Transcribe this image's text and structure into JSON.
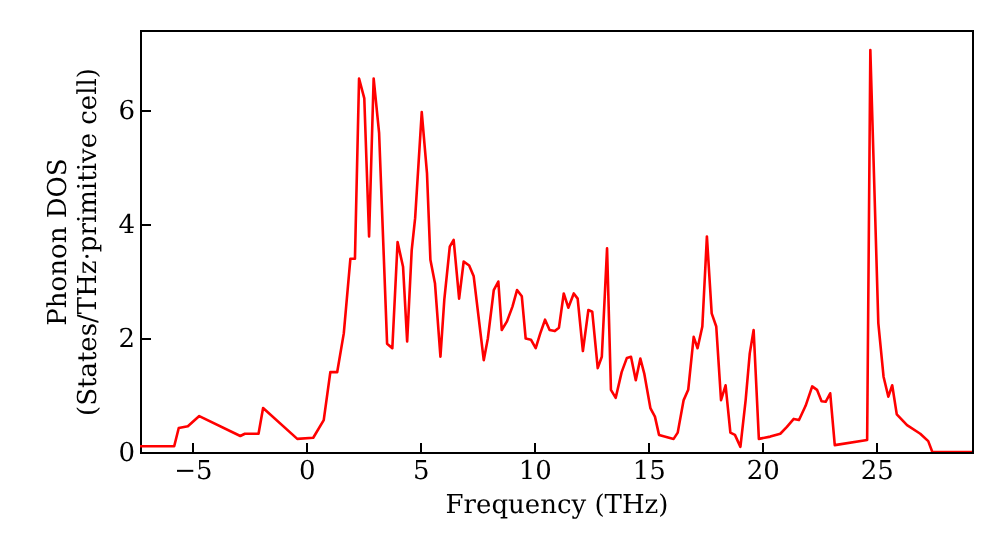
{
  "chart_data": {
    "type": "line",
    "xlabel": "Frequency (THz)",
    "ylabel": "Phonon DOS\n(States/THz·primitive cell)",
    "xlim": [
      -7.3,
      29.2
    ],
    "ylim": [
      0,
      7.4
    ],
    "xticks": [
      -5,
      0,
      5,
      10,
      15,
      20,
      25
    ],
    "yticks": [
      0,
      2,
      4,
      6
    ],
    "grid": false,
    "x": [
      -7.3,
      -5.8,
      -5.6,
      -5.2,
      -4.7,
      -2.9,
      -2.7,
      -2.1,
      -1.9,
      -0.4,
      0.3,
      0.76,
      1.05,
      1.35,
      1.64,
      1.93,
      2.13,
      2.31,
      2.54,
      2.75,
      2.95,
      3.19,
      3.54,
      3.77,
      4.0,
      4.24,
      4.42,
      4.62,
      4.77,
      5.06,
      5.29,
      5.44,
      5.64,
      5.88,
      6.05,
      6.29,
      6.46,
      6.7,
      6.9,
      7.14,
      7.34,
      7.78,
      7.96,
      8.22,
      8.42,
      8.57,
      8.8,
      9.04,
      9.24,
      9.45,
      9.62,
      9.85,
      10.06,
      10.26,
      10.47,
      10.67,
      10.9,
      11.08,
      11.29,
      11.49,
      11.73,
      11.9,
      12.13,
      12.37,
      12.54,
      12.78,
      12.96,
      13.19,
      13.36,
      13.57,
      13.83,
      14.06,
      14.24,
      14.45,
      14.65,
      14.82,
      15.09,
      15.29,
      15.47,
      16.11,
      16.29,
      16.55,
      16.75,
      16.99,
      17.16,
      17.37,
      17.57,
      17.78,
      17.98,
      18.19,
      18.39,
      18.6,
      18.8,
      19.04,
      19.27,
      19.45,
      19.62,
      19.85,
      20.35,
      20.79,
      21.08,
      21.38,
      21.61,
      21.9,
      22.19,
      22.4,
      22.6,
      22.78,
      22.98,
      23.18,
      24.6,
      24.74,
      25.09,
      25.32,
      25.53,
      25.7,
      25.9,
      26.35,
      26.93,
      27.28,
      27.46,
      29.2
    ],
    "series": [
      {
        "color": "#ff0000",
        "line_style": "solid",
        "values": [
          0.1,
          0.1,
          0.42,
          0.45,
          0.63,
          0.28,
          0.32,
          0.32,
          0.77,
          0.23,
          0.25,
          0.56,
          1.4,
          1.4,
          2.08,
          3.39,
          3.39,
          6.55,
          6.2,
          3.78,
          6.55,
          5.59,
          1.9,
          1.82,
          3.68,
          3.25,
          1.94,
          3.54,
          4.1,
          5.96,
          4.89,
          3.37,
          2.96,
          1.67,
          2.67,
          3.6,
          3.72,
          2.69,
          3.34,
          3.27,
          3.08,
          1.61,
          1.99,
          2.84,
          2.99,
          2.14,
          2.29,
          2.55,
          2.84,
          2.73,
          1.99,
          1.97,
          1.82,
          2.08,
          2.32,
          2.14,
          2.12,
          2.18,
          2.78,
          2.53,
          2.78,
          2.69,
          1.77,
          2.49,
          2.46,
          1.47,
          1.67,
          3.57,
          1.09,
          0.95,
          1.4,
          1.65,
          1.67,
          1.26,
          1.64,
          1.38,
          0.77,
          0.62,
          0.3,
          0.23,
          0.34,
          0.91,
          1.09,
          2.02,
          1.82,
          2.2,
          3.78,
          2.43,
          2.2,
          0.91,
          1.17,
          0.34,
          0.3,
          0.09,
          0.91,
          1.73,
          2.14,
          0.23,
          0.27,
          0.32,
          0.44,
          0.58,
          0.56,
          0.81,
          1.15,
          1.09,
          0.89,
          0.88,
          1.03,
          0.12,
          0.21,
          7.05,
          2.26,
          1.32,
          0.97,
          1.17,
          0.66,
          0.47,
          0.32,
          0.19,
          0,
          0
        ]
      }
    ]
  }
}
